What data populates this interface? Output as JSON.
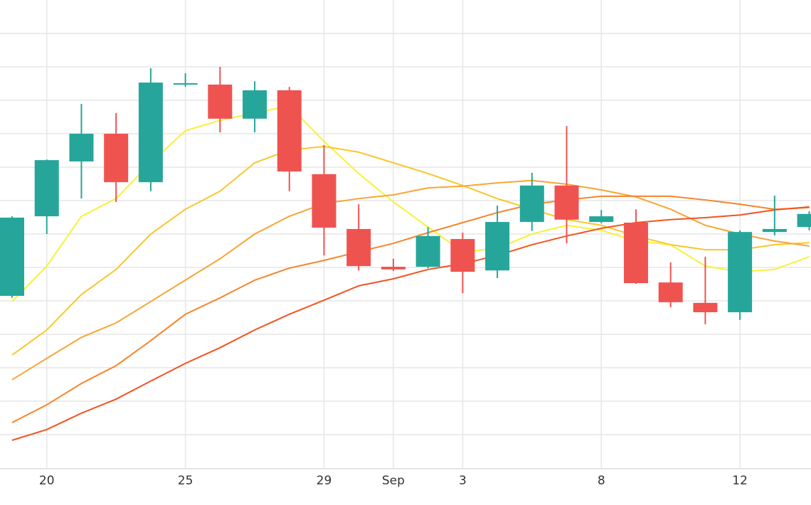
{
  "chart_data": {
    "type": "candlestick",
    "categories": [
      null,
      "20",
      null,
      null,
      null,
      "25",
      null,
      null,
      null,
      "29",
      null,
      "Sep",
      null,
      "3",
      null,
      null,
      null,
      "8",
      null,
      null,
      null,
      "12",
      null,
      null
    ],
    "open": [
      5.15,
      7.53,
      9.17,
      10.0,
      8.55,
      11.47,
      11.47,
      10.45,
      11.3,
      8.79,
      7.15,
      6.02,
      6.02,
      6.85,
      5.91,
      7.36,
      8.45,
      7.36,
      7.34,
      5.55,
      4.94,
      4.66,
      7.06,
      7.21
    ],
    "high": [
      7.53,
      9.23,
      10.89,
      10.62,
      11.96,
      11.81,
      12.0,
      11.57,
      11.4,
      9.66,
      7.89,
      6.26,
      7.21,
      7.04,
      7.85,
      8.83,
      10.23,
      7.72,
      7.74,
      6.15,
      6.32,
      7.11,
      8.15,
      7.68
    ],
    "low": [
      5.09,
      7.0,
      8.06,
      7.96,
      8.28,
      11.4,
      10.04,
      10.04,
      8.28,
      6.36,
      5.91,
      5.89,
      5.98,
      5.23,
      5.68,
      7.09,
      6.72,
      7.32,
      5.51,
      4.81,
      4.3,
      4.43,
      6.96,
      7.11
    ],
    "close": [
      7.49,
      9.21,
      10.0,
      8.55,
      11.53,
      11.51,
      10.45,
      11.3,
      8.87,
      7.19,
      6.04,
      5.94,
      6.94,
      5.87,
      7.36,
      8.45,
      7.43,
      7.53,
      5.53,
      4.96,
      4.66,
      7.06,
      7.15,
      7.6
    ],
    "up_color": "#26a69a",
    "down_color": "#ef5350",
    "ma": [
      {
        "color": "#f9f037",
        "values": [
          4.98,
          6.04,
          7.53,
          8.06,
          9.13,
          10.09,
          10.4,
          10.62,
          10.83,
          9.77,
          8.81,
          7.96,
          7.21,
          6.47,
          6.57,
          7.0,
          7.26,
          7.11,
          6.79,
          6.68,
          6.04,
          5.87,
          5.94,
          6.32
        ]
      },
      {
        "color": "#f8c72c",
        "values": [
          3.38,
          4.13,
          5.19,
          5.94,
          7.0,
          7.74,
          8.28,
          9.13,
          9.51,
          9.62,
          9.45,
          9.13,
          8.81,
          8.45,
          8.06,
          7.74,
          7.43,
          7.26,
          6.94,
          6.68,
          6.53,
          6.53,
          6.68,
          6.74
        ]
      },
      {
        "color": "#f8a534",
        "values": [
          2.64,
          3.28,
          3.91,
          4.34,
          4.98,
          5.62,
          6.26,
          7.0,
          7.53,
          7.91,
          8.06,
          8.17,
          8.38,
          8.43,
          8.53,
          8.6,
          8.49,
          8.32,
          8.11,
          7.74,
          7.26,
          7.0,
          6.79,
          6.64
        ]
      },
      {
        "color": "#f6842a",
        "values": [
          1.36,
          1.89,
          2.53,
          3.06,
          3.81,
          4.6,
          5.09,
          5.62,
          5.98,
          6.21,
          6.47,
          6.72,
          7.04,
          7.34,
          7.64,
          7.89,
          8.02,
          8.13,
          8.13,
          8.13,
          8.02,
          7.89,
          7.74,
          7.79
        ]
      },
      {
        "color": "#f25322",
        "values": [
          0.83,
          1.15,
          1.64,
          2.06,
          2.6,
          3.13,
          3.6,
          4.13,
          4.6,
          5.02,
          5.45,
          5.66,
          5.94,
          6.11,
          6.36,
          6.68,
          6.94,
          7.17,
          7.34,
          7.43,
          7.49,
          7.57,
          7.72,
          7.81
        ]
      }
    ],
    "ylim": [
      0,
      14
    ],
    "yticks": [
      1,
      2,
      3,
      4,
      5,
      6,
      7,
      8,
      9,
      10,
      11,
      12,
      13
    ],
    "grid": true
  }
}
